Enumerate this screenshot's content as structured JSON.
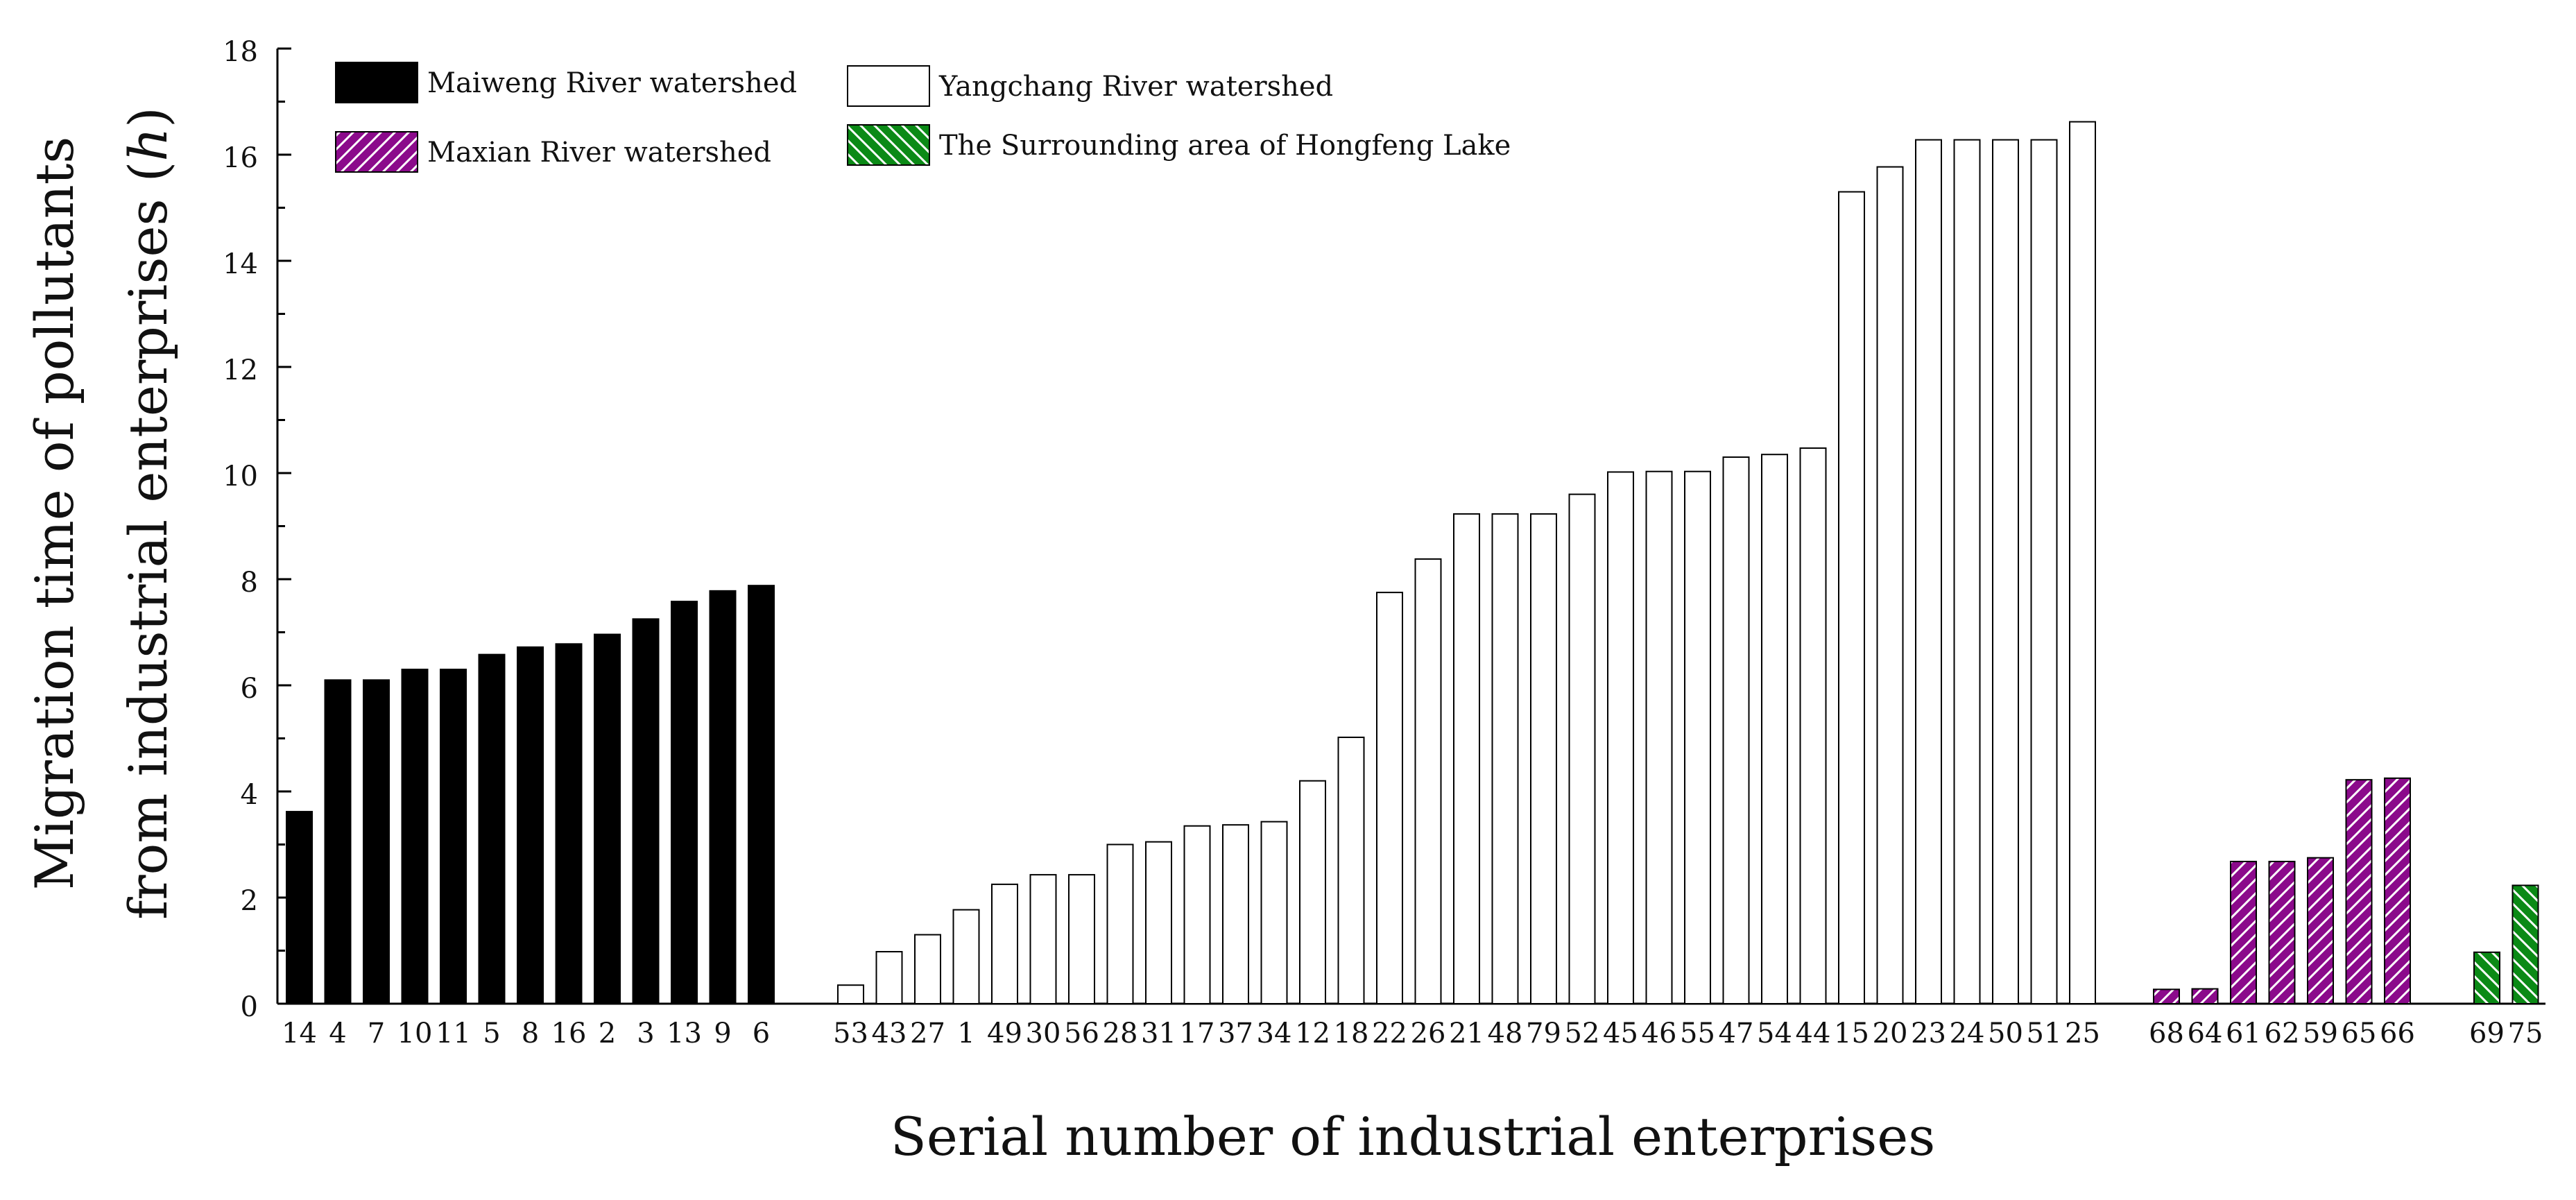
{
  "chart_data": {
    "type": "bar",
    "title": "",
    "xlabel": "Serial number of industrial enterprises",
    "ylabel_line1": "Migration time of pollutants",
    "ylabel_line2_prefix": "from industrial enterprises (",
    "ylabel_unit": "h",
    "ylabel_line2_suffix": ")",
    "ylim": [
      0,
      18
    ],
    "yticks": [
      0,
      2,
      4,
      6,
      8,
      10,
      12,
      14,
      16,
      18
    ],
    "ytick_labels": [
      "0",
      "2",
      "4",
      "6",
      "8",
      "10",
      "12",
      "14",
      "16",
      "18"
    ],
    "legend_position": "top-left",
    "series": [
      {
        "name": "Maiweng River watershed",
        "color": "#000000",
        "pattern": "solid",
        "categories": [
          "14",
          "4",
          "7",
          "10",
          "11",
          "5",
          "8",
          "16",
          "2",
          "3",
          "13",
          "9",
          "6"
        ],
        "values": [
          3.62,
          6.1,
          6.1,
          6.3,
          6.3,
          6.58,
          6.72,
          6.78,
          6.96,
          7.25,
          7.58,
          7.78,
          7.88
        ]
      },
      {
        "name": "Yangchang River watershed",
        "color": "#ffffff",
        "pattern": "none",
        "categories": [
          "53",
          "43",
          "27",
          "1",
          "49",
          "30",
          "56",
          "28",
          "31",
          "17",
          "37",
          "34",
          "12",
          "18",
          "22",
          "26",
          "21",
          "48",
          "79",
          "52",
          "45",
          "46",
          "55",
          "47",
          "54",
          "44",
          "15",
          "20",
          "23",
          "24",
          "50",
          "51",
          "25"
        ],
        "values": [
          0.35,
          0.98,
          1.3,
          1.77,
          2.25,
          2.43,
          2.43,
          3.0,
          3.05,
          3.35,
          3.37,
          3.43,
          4.2,
          5.02,
          7.75,
          8.38,
          9.23,
          9.23,
          9.23,
          9.6,
          10.02,
          10.03,
          10.03,
          10.3,
          10.35,
          10.47,
          15.3,
          15.77,
          16.28,
          16.28,
          16.28,
          16.28,
          16.62
        ]
      },
      {
        "name": "Maxian River watershed",
        "color": "#8b0a8b",
        "pattern": "diagonal-up",
        "categories": [
          "68",
          "64",
          "61",
          "62",
          "59",
          "65",
          "66"
        ],
        "values": [
          0.27,
          0.28,
          2.68,
          2.68,
          2.75,
          4.22,
          4.25
        ]
      },
      {
        "name": "The Surrounding area of Hongfeng Lake",
        "color": "#0b8a16",
        "pattern": "diagonal-down",
        "categories": [
          "69",
          "75"
        ],
        "values": [
          0.97,
          2.23
        ]
      }
    ]
  }
}
